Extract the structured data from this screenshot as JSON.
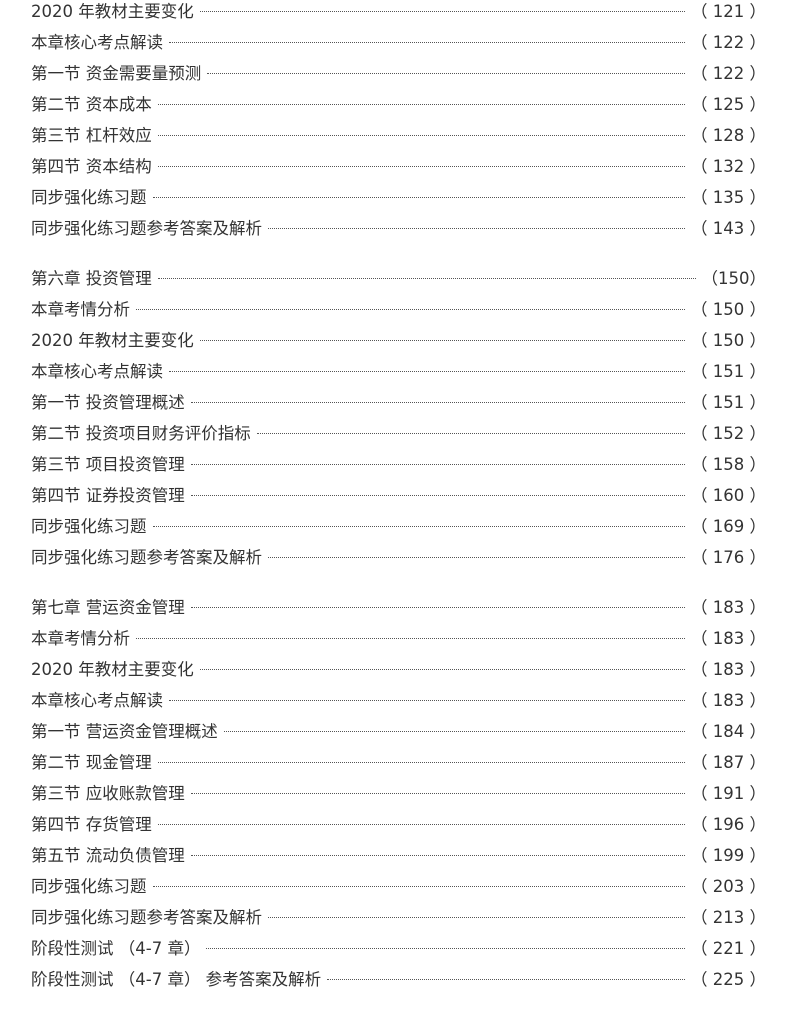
{
  "sections": [
    {
      "entries": [
        {
          "title": "2020 年教材主要变化",
          "page": "（ 121 ）"
        },
        {
          "title": "本章核心考点解读",
          "page": "（ 122 ）"
        },
        {
          "title": "第一节 资金需要量预测",
          "page": "（ 122 ）"
        },
        {
          "title": "第二节 资本成本",
          "page": "（ 125 ）"
        },
        {
          "title": "第三节 杠杆效应",
          "page": "（ 128 ）"
        },
        {
          "title": "第四节 资本结构",
          "page": "（ 132 ）"
        },
        {
          "title": "同步强化练习题",
          "page": "（ 135 ）"
        },
        {
          "title": "同步强化练习题参考答案及解析",
          "page": "（ 143 ）"
        }
      ]
    },
    {
      "entries": [
        {
          "title": "第六章 投资管理",
          "page": "（150）"
        },
        {
          "title": "本章考情分析",
          "page": "（ 150 ）"
        },
        {
          "title": "2020 年教材主要变化",
          "page": "（ 150 ）"
        },
        {
          "title": "本章核心考点解读",
          "page": "（ 151 ）"
        },
        {
          "title": "第一节 投资管理概述",
          "page": "（ 151 ）"
        },
        {
          "title": "第二节 投资项目财务评价指标",
          "page": "（ 152 ）"
        },
        {
          "title": "第三节 项目投资管理",
          "page": "（ 158 ）"
        },
        {
          "title": "第四节 证券投资管理",
          "page": "（ 160 ）"
        },
        {
          "title": "同步强化练习题",
          "page": "（ 169 ）"
        },
        {
          "title": "同步强化练习题参考答案及解析",
          "page": "（ 176 ）"
        }
      ]
    },
    {
      "entries": [
        {
          "title": "第七章 营运资金管理",
          "page": "（ 183 ）"
        },
        {
          "title": "本章考情分析",
          "page": "（ 183 ）"
        },
        {
          "title": "2020 年教材主要变化",
          "page": "（ 183 ）"
        },
        {
          "title": "本章核心考点解读",
          "page": "（ 183 ）"
        },
        {
          "title": "第一节 营运资金管理概述",
          "page": "（ 184 ）"
        },
        {
          "title": "第二节 现金管理",
          "page": "（ 187 ）"
        },
        {
          "title": "第三节 应收账款管理",
          "page": "（ 191 ）"
        },
        {
          "title": "第四节 存货管理",
          "page": "（ 196 ）"
        },
        {
          "title": "第五节 流动负债管理",
          "page": "（ 199 ）"
        },
        {
          "title": "同步强化练习题",
          "page": "（ 203 ）"
        },
        {
          "title": "同步强化练习题参考答案及解析",
          "page": "（ 213 ）"
        },
        {
          "title": "阶段性测试 （4-7 章）",
          "page": "（ 221 ）"
        },
        {
          "title": "阶段性测试 （4-7 章） 参考答案及解析",
          "page": "（ 225 ）"
        }
      ]
    }
  ]
}
